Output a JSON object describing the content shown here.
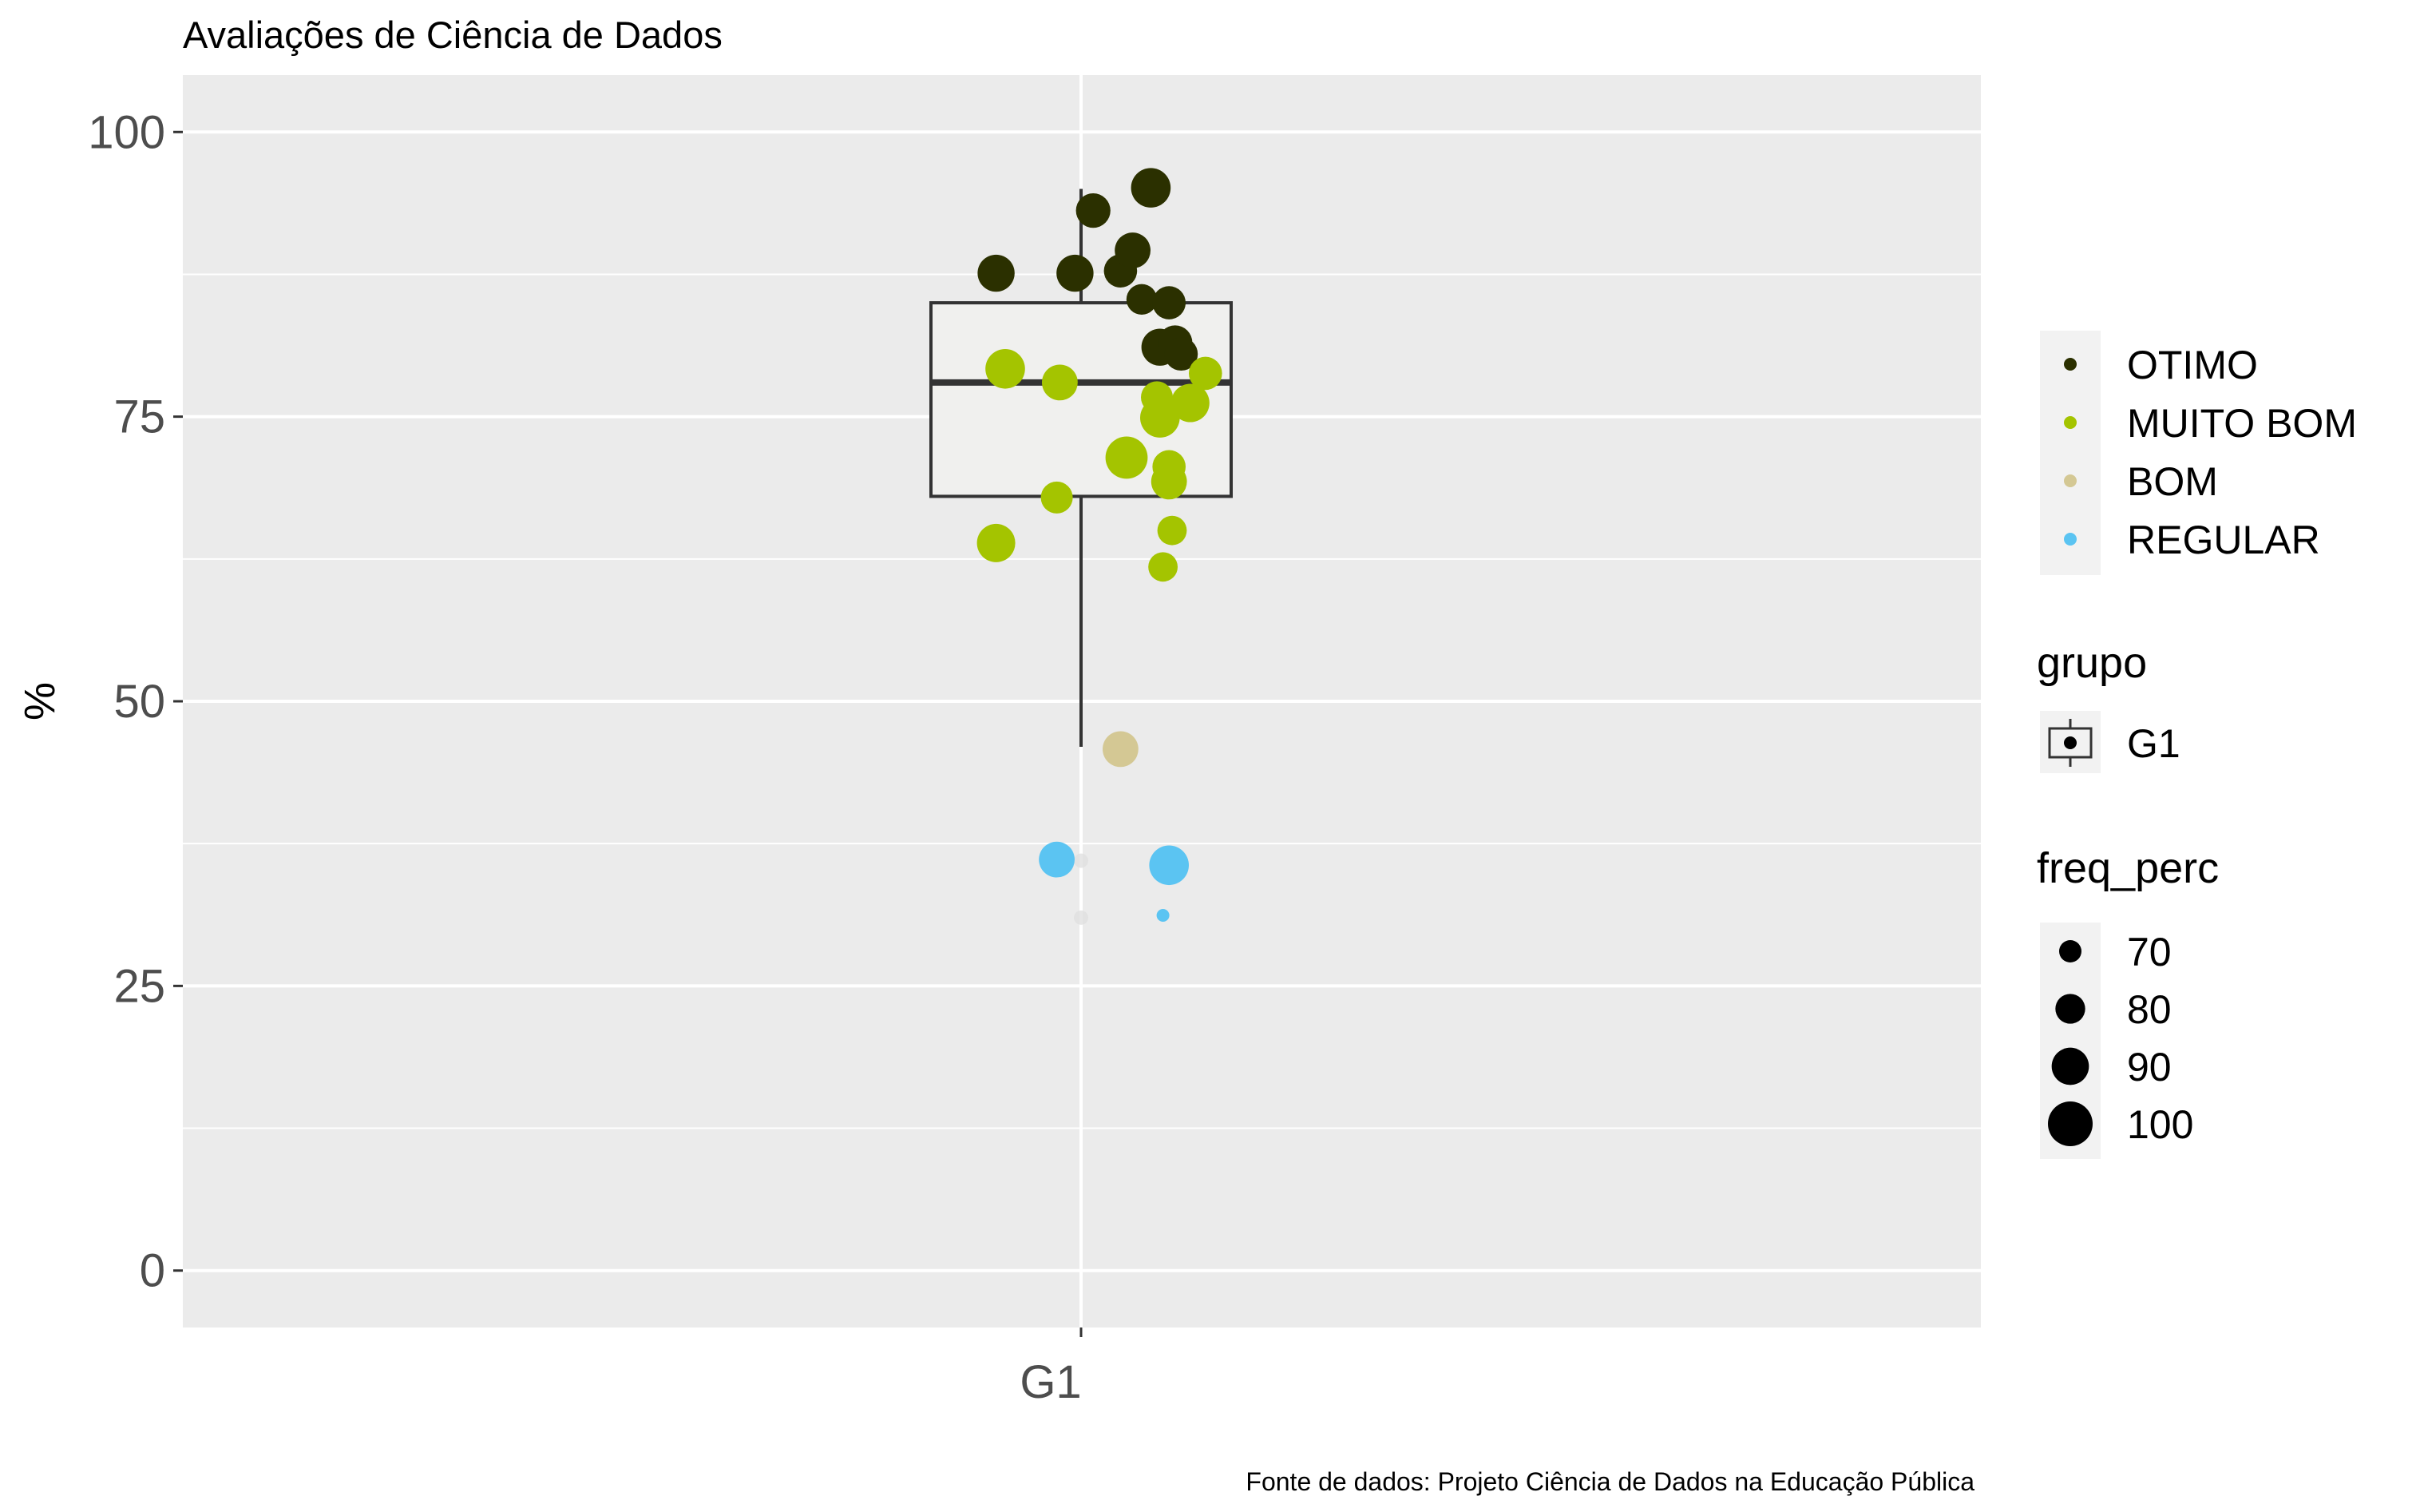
{
  "title": "Avaliações de Ciência de Dados",
  "caption": "Fonte de dados: Projeto Ciência de Dados na Educação Pública",
  "chart_data": {
    "type": "boxplot+scatter",
    "ylabel": "%",
    "xlabel": "",
    "ylim": [
      -5,
      105
    ],
    "yticks": [
      0,
      25,
      50,
      75,
      100
    ],
    "y_tick_labels": [
      "0",
      "25",
      "50",
      "75",
      "100"
    ],
    "categories": [
      "G1"
    ],
    "panel_background": "#ebebeb",
    "grid": true,
    "boxplot": {
      "category": "G1",
      "min": 46,
      "q1": 68,
      "median": 78,
      "q3": 85,
      "max": 95,
      "fill": "#f0f0ee",
      "stroke": "#333333"
    },
    "color_legend": {
      "title": "",
      "entries": [
        {
          "name": "OTIMO",
          "color": "#2b3000"
        },
        {
          "name": "MUITO BOM",
          "color": "#a4c400"
        },
        {
          "name": "BOM",
          "color": "#d4c894"
        },
        {
          "name": "REGULAR",
          "color": "#5bc4f2"
        }
      ]
    },
    "group_legend": {
      "title": "grupo",
      "entries": [
        "G1"
      ]
    },
    "size_legend": {
      "title": "freq_perc",
      "values": [
        70,
        80,
        90,
        100
      ],
      "labels": [
        "70",
        "80",
        "90",
        "100"
      ]
    },
    "series": [
      {
        "name": "OTIMO",
        "color": "#2b3000",
        "points": [
          {
            "x": -0.14,
            "y": 87.6,
            "size": 88
          },
          {
            "x": -0.01,
            "y": 87.6,
            "size": 88
          },
          {
            "x": 0.02,
            "y": 93.1,
            "size": 84
          },
          {
            "x": 0.065,
            "y": 87.8,
            "size": 82
          },
          {
            "x": 0.085,
            "y": 89.6,
            "size": 86
          },
          {
            "x": 0.115,
            "y": 95.1,
            "size": 92
          },
          {
            "x": 0.1,
            "y": 85.3,
            "size": 78
          },
          {
            "x": 0.145,
            "y": 85.0,
            "size": 82
          },
          {
            "x": 0.13,
            "y": 81.1,
            "size": 88
          },
          {
            "x": 0.155,
            "y": 81.5,
            "size": 84
          },
          {
            "x": 0.165,
            "y": 80.5,
            "size": 82
          }
        ]
      },
      {
        "name": "MUITO BOM",
        "color": "#a4c400",
        "points": [
          {
            "x": -0.125,
            "y": 79.2,
            "size": 92
          },
          {
            "x": -0.035,
            "y": 78.0,
            "size": 86
          },
          {
            "x": -0.04,
            "y": 67.9,
            "size": 80
          },
          {
            "x": -0.14,
            "y": 63.9,
            "size": 90
          },
          {
            "x": 0.075,
            "y": 71.4,
            "size": 96
          },
          {
            "x": 0.125,
            "y": 76.7,
            "size": 80
          },
          {
            "x": 0.13,
            "y": 74.9,
            "size": 92
          },
          {
            "x": 0.18,
            "y": 76.2,
            "size": 90
          },
          {
            "x": 0.205,
            "y": 78.8,
            "size": 82
          },
          {
            "x": 0.145,
            "y": 70.6,
            "size": 82
          },
          {
            "x": 0.145,
            "y": 69.3,
            "size": 86
          },
          {
            "x": 0.15,
            "y": 65.0,
            "size": 76
          },
          {
            "x": 0.135,
            "y": 61.8,
            "size": 76
          }
        ]
      },
      {
        "name": "BOM",
        "color": "#d4c894",
        "points": [
          {
            "x": 0.065,
            "y": 45.8,
            "size": 86
          }
        ]
      },
      {
        "name": "REGULAR",
        "color": "#5bc4f2",
        "points": [
          {
            "x": -0.04,
            "y": 36.1,
            "size": 86
          },
          {
            "x": 0.145,
            "y": 35.6,
            "size": 92
          },
          {
            "x": 0.135,
            "y": 31.2,
            "size": 50
          }
        ]
      }
    ],
    "faint_points": [
      {
        "x": 0.0,
        "y": 36.0
      },
      {
        "x": 0.0,
        "y": 31.0
      }
    ]
  }
}
